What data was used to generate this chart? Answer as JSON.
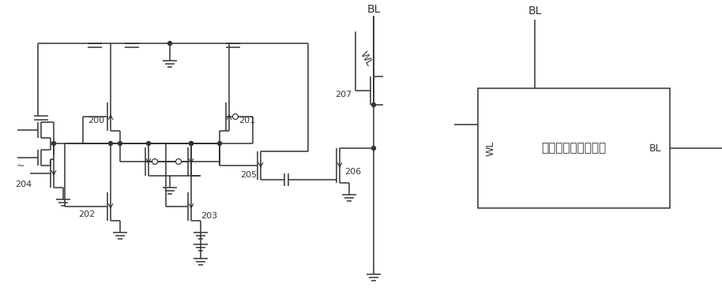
{
  "bg": "#ffffff",
  "lc": "#333333",
  "lw": 1.1,
  "fig_w": 9.14,
  "fig_h": 3.73,
  "box_text": "下拉位线伪存储单元",
  "labels": {
    "BL": "BL",
    "WL": "WL",
    "n200": "200",
    "n201": "201",
    "n202": "202",
    "n203": "203",
    "n204": "204",
    "n205": "205",
    "n206": "206",
    "n207": "207",
    "box_WL": "WL",
    "box_BL": "BL"
  }
}
